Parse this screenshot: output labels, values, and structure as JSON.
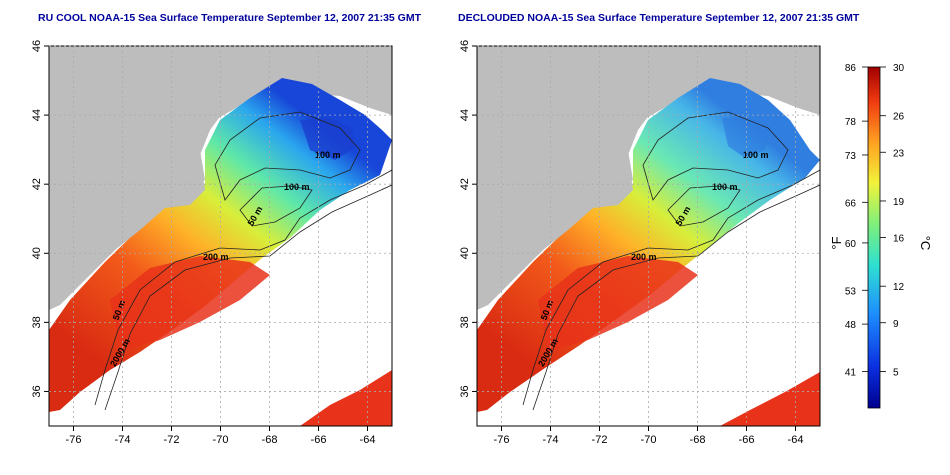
{
  "titles": {
    "left": "RU COOL NOAA-15 Sea Surface Temperature September 12, 2007 21:35 GMT",
    "right": "DECLOUDED NOAA-15 Sea Surface Temperature September 12, 2007 21:35 GMT"
  },
  "axes": {
    "x_ticks": [
      "-76",
      "-74",
      "-72",
      "-70",
      "-68",
      "-66",
      "-64"
    ],
    "y_ticks": [
      "36",
      "38",
      "40",
      "42",
      "44",
      "46"
    ]
  },
  "contour_labels": [
    "100 m",
    "100 m",
    "50 m",
    "200 m",
    "50 m",
    "2000 m"
  ],
  "colorbar": {
    "unit_f": "°F",
    "unit_c": "°C",
    "f_labels": [
      "86",
      "78",
      "73",
      "66",
      "60",
      "53",
      "48",
      "41"
    ],
    "c_labels": [
      "30",
      "26",
      "23",
      "19",
      "16",
      "12",
      "9",
      "5"
    ]
  },
  "colors": {
    "land": "#bdbdbd",
    "title": "#00009c",
    "warm": "#e83a1c",
    "cold": "#1a3fd0"
  },
  "chart_data": {
    "type": "heatmap",
    "title": "RU COOL NOAA-15 Sea Surface Temperature September 12, 2007 21:35 GMT",
    "xlim": [
      -77,
      -63
    ],
    "ylim": [
      35,
      46
    ],
    "x_ticks": [
      -76,
      -74,
      -72,
      -70,
      -68,
      -66,
      -64
    ],
    "y_ticks": [
      36,
      38,
      40,
      42,
      44,
      46
    ],
    "colorbar_c_range": [
      2,
      30
    ],
    "colorbar_c_ticks": [
      30,
      26,
      23,
      19,
      16,
      12,
      9,
      5
    ],
    "colorbar_f_ticks": [
      86,
      78,
      73,
      66,
      60,
      53,
      48,
      41
    ],
    "grid": true
  }
}
